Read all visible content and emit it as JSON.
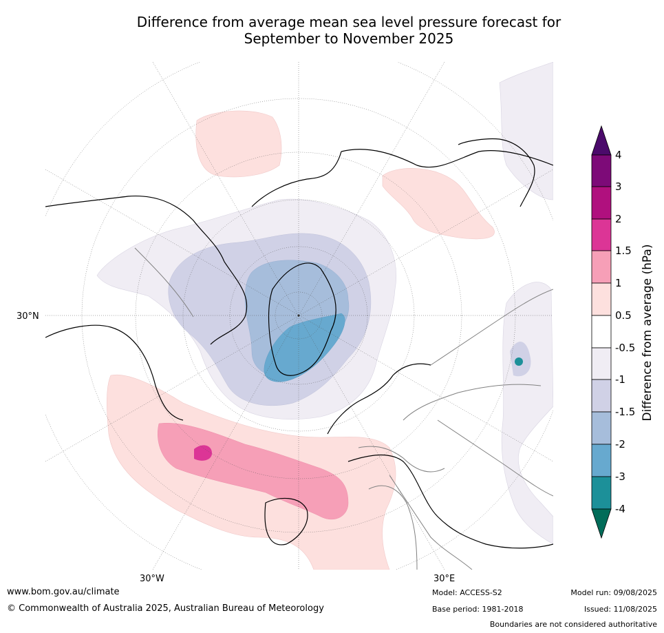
{
  "title_line1": "Difference from average mean sea level pressure forecast for",
  "title_line2": "September to November 2025",
  "lat_labels": {
    "lat30": "30°N",
    "lon_w": "30°W",
    "lon_e": "30°E"
  },
  "colorbar": {
    "title": "Difference from average (hPa)",
    "ticks": [
      "4",
      "3",
      "2",
      "1.5",
      "1",
      "0.5",
      "-0.5",
      "-1",
      "-1.5",
      "-2",
      "-3",
      "-4"
    ],
    "colors": {
      "gt4": "#4b0a6b",
      "3to4": "#7d0a78",
      "2to3": "#b0107e",
      "1.5to2": "#dc3596",
      "1to1.5": "#f69fb7",
      "0.5to1": "#fde0de",
      "neutral": "#ffffff",
      "-1to-0.5": "#f0edf4",
      "-1.5to-1": "#d0d1e6",
      "-2to-1.5": "#a6bddb",
      "-3to-2": "#67a9cf",
      "-4to-3": "#1c9099",
      "lt-4": "#016c59"
    }
  },
  "footer": {
    "website": "www.bom.gov.au/climate",
    "copyright": "© Commonwealth of Australia 2025, Australian Bureau of Meteorology",
    "model": "Model: ACCESS-S2",
    "base_period": "Base period: 1981-2018",
    "model_run": "Model run: 09/08/2025",
    "issued": "Issued: 11/08/2025",
    "boundaries": "Boundaries are not considered authoritative"
  }
}
